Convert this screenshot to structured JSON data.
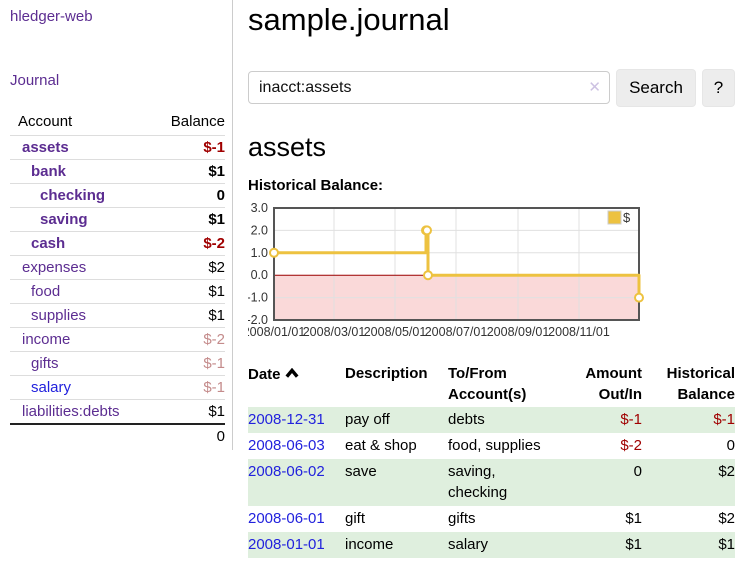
{
  "colors": {
    "purple": "#5c2d91",
    "blue": "#2222dd",
    "darkred": "#a00000",
    "rose": "#c48b8b",
    "gold": "#edc240",
    "pink": "#fad9d9",
    "green": "#dfefde",
    "zero": "#990000"
  },
  "sidebar": {
    "brand": "hledger-web",
    "nav": {
      "journal": "Journal"
    },
    "accounts_table": {
      "headers": [
        "Account",
        "Balance"
      ],
      "rows": [
        {
          "account": "assets",
          "balance": "$-1",
          "depth": 1,
          "bold": true,
          "neg": "strong",
          "variant": "visited"
        },
        {
          "account": "bank",
          "balance": "$1",
          "depth": 2,
          "bold": true,
          "neg": "none",
          "variant": "visited"
        },
        {
          "account": "checking",
          "balance": "0",
          "depth": 3,
          "bold": true,
          "neg": "none",
          "variant": "visited"
        },
        {
          "account": "saving",
          "balance": "$1",
          "depth": 3,
          "bold": true,
          "neg": "none",
          "variant": "visited"
        },
        {
          "account": "cash",
          "balance": "$-2",
          "depth": 2,
          "bold": true,
          "neg": "strong",
          "variant": "visited"
        },
        {
          "account": "expenses",
          "balance": "$2",
          "depth": 1,
          "bold": false,
          "neg": "none",
          "variant": "visited"
        },
        {
          "account": "food",
          "balance": "$1",
          "depth": 2,
          "bold": false,
          "neg": "none",
          "variant": "visited"
        },
        {
          "account": "supplies",
          "balance": "$1",
          "depth": 2,
          "bold": false,
          "neg": "none",
          "variant": "visited"
        },
        {
          "account": "income",
          "balance": "$-2",
          "depth": 1,
          "bold": false,
          "neg": "muted",
          "variant": "visited"
        },
        {
          "account": "gifts",
          "balance": "$-1",
          "depth": 2,
          "bold": false,
          "neg": "muted",
          "variant": "visited"
        },
        {
          "account": "salary",
          "balance": "$-1",
          "depth": 2,
          "bold": false,
          "neg": "muted",
          "variant": "unvisited"
        },
        {
          "account": "liabilities:debts",
          "balance": "$1",
          "depth": 1,
          "bold": false,
          "neg": "none",
          "variant": "visited"
        }
      ],
      "total": "0"
    }
  },
  "main": {
    "title": "sample.journal",
    "search": {
      "value": "inacct:assets",
      "clear_icon": "✕",
      "search_button": "Search",
      "help_button": "?"
    },
    "account_heading": "assets"
  },
  "chart_data": {
    "type": "line",
    "title": "Historical Balance:",
    "step": true,
    "xlim": [
      "2008-01-01",
      "2008-12-31"
    ],
    "ylim": [
      -2,
      3
    ],
    "x_ticks": [
      "2008/01/01",
      "2008/03/01",
      "2008/05/01",
      "2008/07/01",
      "2008/09/01",
      "2008/11/01"
    ],
    "y_ticks": [
      3.0,
      2.0,
      1.0,
      0.0,
      -1.0,
      -2.0
    ],
    "grid_color": "#e0e0e0",
    "negative_region_color": "#fad9d9",
    "zero_line_color": "#990000",
    "legend_position": "top-right",
    "series": [
      {
        "name": "$",
        "color": "#edc240",
        "points": [
          [
            "2008-01-01",
            1
          ],
          [
            "2008-06-01",
            2
          ],
          [
            "2008-06-02",
            2
          ],
          [
            "2008-06-03",
            0
          ],
          [
            "2008-12-31",
            -1
          ]
        ]
      }
    ]
  },
  "transactions": {
    "headers": [
      "Date",
      "Description",
      "To/From Account(s)",
      "Amount Out/In",
      "Historical Balance"
    ],
    "sort": {
      "column": "Date",
      "direction": "asc"
    },
    "rows": [
      {
        "date": "2008-12-31",
        "description": "pay off",
        "accounts": "debts",
        "amount": "$-1",
        "amount_neg": true,
        "balance": "$-1",
        "balance_neg": true
      },
      {
        "date": "2008-06-03",
        "description": "eat & shop",
        "accounts": "food, supplies",
        "amount": "$-2",
        "amount_neg": true,
        "balance": "0",
        "balance_neg": false
      },
      {
        "date": "2008-06-02",
        "description": "save",
        "accounts": "saving, checking",
        "amount": "0",
        "amount_neg": false,
        "balance": "$2",
        "balance_neg": false
      },
      {
        "date": "2008-06-01",
        "description": "gift",
        "accounts": "gifts",
        "amount": "$1",
        "amount_neg": false,
        "balance": "$2",
        "balance_neg": false
      },
      {
        "date": "2008-01-01",
        "description": "income",
        "accounts": "salary",
        "amount": "$1",
        "amount_neg": false,
        "balance": "$1",
        "balance_neg": false
      }
    ]
  }
}
